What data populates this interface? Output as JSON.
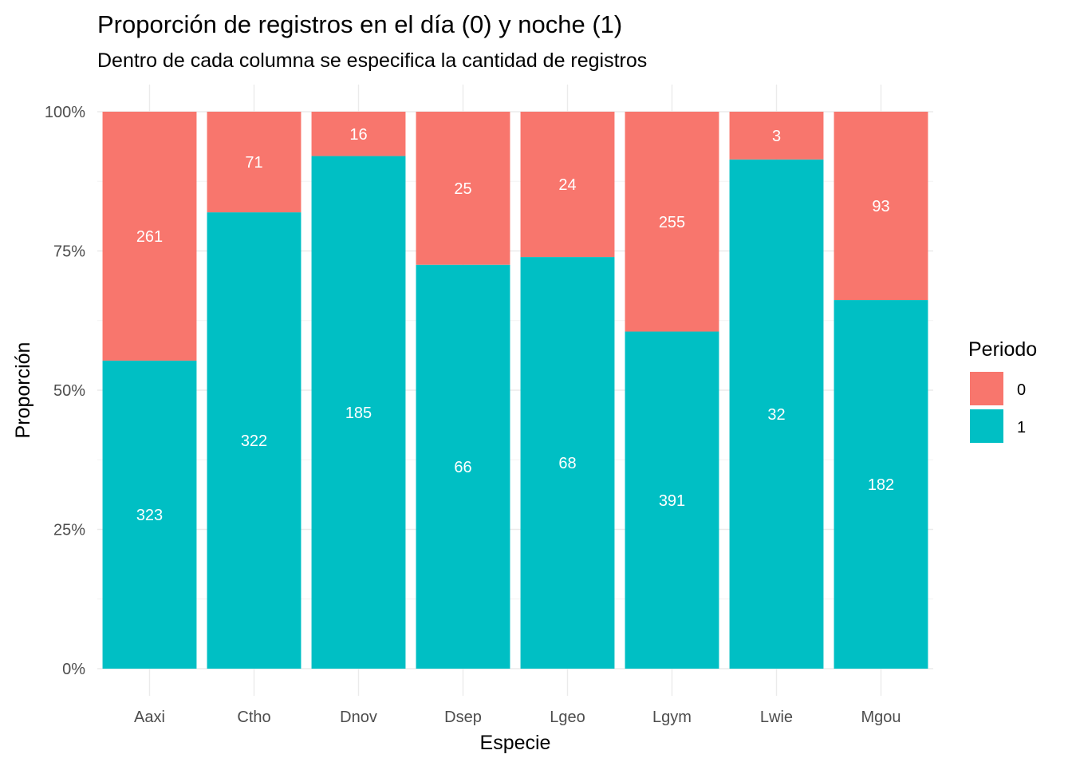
{
  "chart_data": {
    "type": "bar",
    "stacked": true,
    "normalized": true,
    "title": "Proporción de registros en el día (0) y noche (1)",
    "subtitle": "Dentro de cada columna se especifica la cantidad de registros",
    "xlabel": "Especie",
    "ylabel": "Proporción",
    "categories": [
      "Aaxi",
      "Ctho",
      "Dnov",
      "Dsep",
      "Lgeo",
      "Lgym",
      "Lwie",
      "Mgou"
    ],
    "ylim": [
      0,
      1
    ],
    "yticks": [
      {
        "value": 0,
        "label": "0%"
      },
      {
        "value": 0.25,
        "label": "25%"
      },
      {
        "value": 0.5,
        "label": "50%"
      },
      {
        "value": 0.75,
        "label": "75%"
      },
      {
        "value": 1,
        "label": "100%"
      }
    ],
    "grid": true,
    "legend": {
      "title": "Periodo",
      "position": "right"
    },
    "series": [
      {
        "name": "1",
        "color": "#00BFC4",
        "values": [
          323,
          322,
          185,
          66,
          68,
          391,
          32,
          182
        ]
      },
      {
        "name": "0",
        "color": "#F8766D",
        "values": [
          261,
          71,
          16,
          25,
          24,
          255,
          3,
          93
        ]
      }
    ],
    "legend_order": [
      "0",
      "1"
    ]
  }
}
